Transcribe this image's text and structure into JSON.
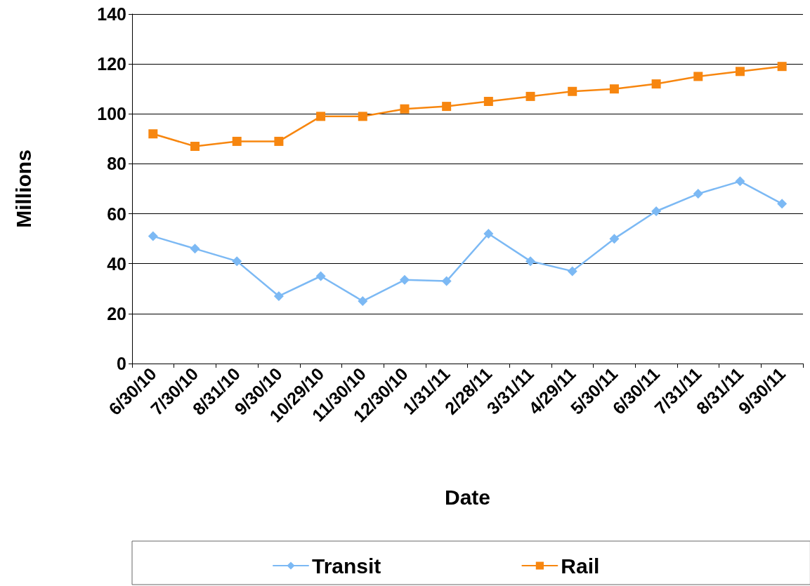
{
  "chart_data": {
    "type": "line",
    "xlabel": "Date",
    "ylabel": "Millions",
    "categories": [
      "6/30/10",
      "7/30/10",
      "8/31/10",
      "9/30/10",
      "10/29/10",
      "11/30/10",
      "12/30/10",
      "1/31/11",
      "2/28/11",
      "3/31/11",
      "4/29/11",
      "5/30/11",
      "6/30/11",
      "7/31/11",
      "8/31/11",
      "9/30/11"
    ],
    "series": [
      {
        "name": "Transit",
        "color": "#7cb9f4",
        "marker": "diamond",
        "values": [
          51,
          46,
          41,
          27,
          35,
          25,
          33.5,
          33,
          52,
          41,
          37,
          50,
          61,
          68,
          73,
          64
        ]
      },
      {
        "name": "Rail",
        "color": "#f7860f",
        "marker": "square",
        "values": [
          92,
          87,
          89,
          89,
          99,
          99,
          102,
          103,
          105,
          107,
          109,
          110,
          112,
          115,
          117,
          119
        ]
      }
    ],
    "ylim": [
      0,
      140
    ],
    "yticks": [
      0,
      20,
      40,
      60,
      80,
      100,
      120,
      140
    ],
    "grid": "y",
    "legend": "bottom",
    "line_style": "solid"
  }
}
